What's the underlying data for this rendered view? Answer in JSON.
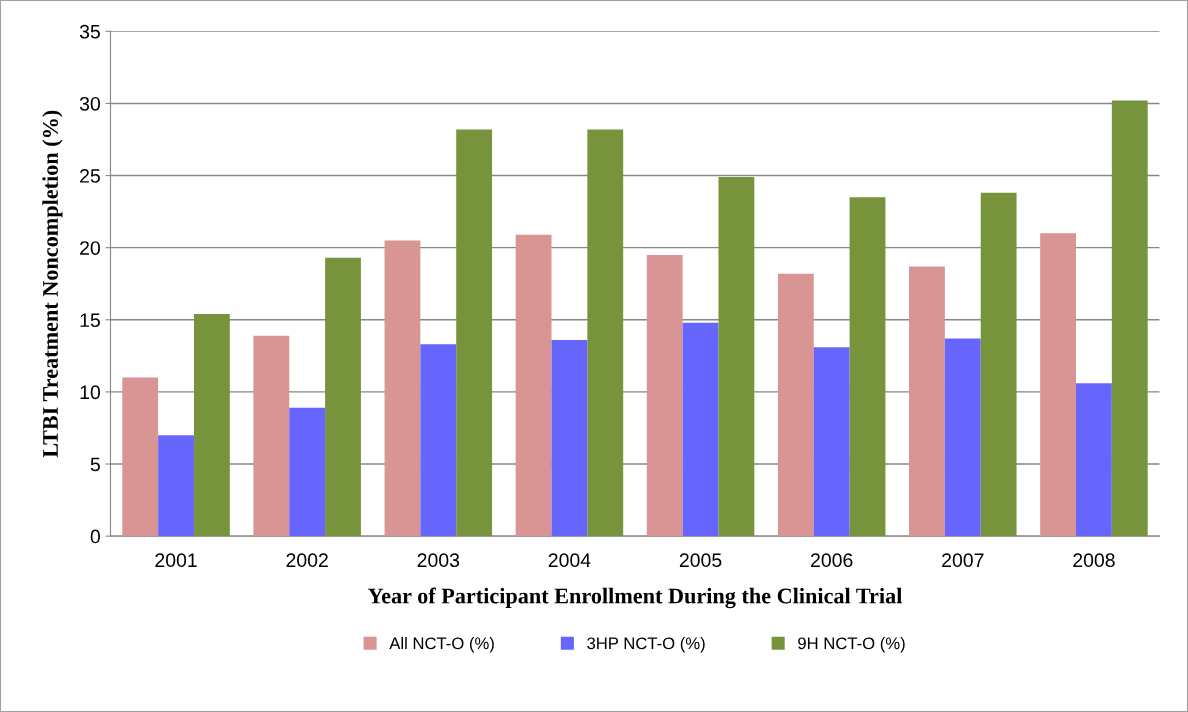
{
  "chart_data": {
    "type": "bar",
    "xlabel": "Year of Participant Enrollment During the Clinical Trial",
    "ylabel": "LTBI Treatment Noncompletion (%)",
    "categories": [
      "2001",
      "2002",
      "2003",
      "2004",
      "2005",
      "2006",
      "2007",
      "2008"
    ],
    "series": [
      {
        "name": "All NCT-O (%)",
        "color": "#d99594",
        "values": [
          11.0,
          13.9,
          20.5,
          20.9,
          19.5,
          18.2,
          18.7,
          21.0
        ]
      },
      {
        "name": "3HP NCT-O (%)",
        "color": "#6666ff",
        "values": [
          7.0,
          8.9,
          13.3,
          13.6,
          14.8,
          13.1,
          13.7,
          10.6
        ]
      },
      {
        "name": "9H NCT-O (%)",
        "color": "#77933c",
        "values": [
          15.4,
          19.3,
          28.2,
          28.2,
          24.9,
          23.5,
          23.8,
          30.2
        ]
      }
    ],
    "ylim": [
      0,
      35
    ],
    "yticks": [
      0,
      5,
      10,
      15,
      20,
      25,
      30,
      35
    ],
    "grid": "y",
    "legend": "bottom"
  }
}
